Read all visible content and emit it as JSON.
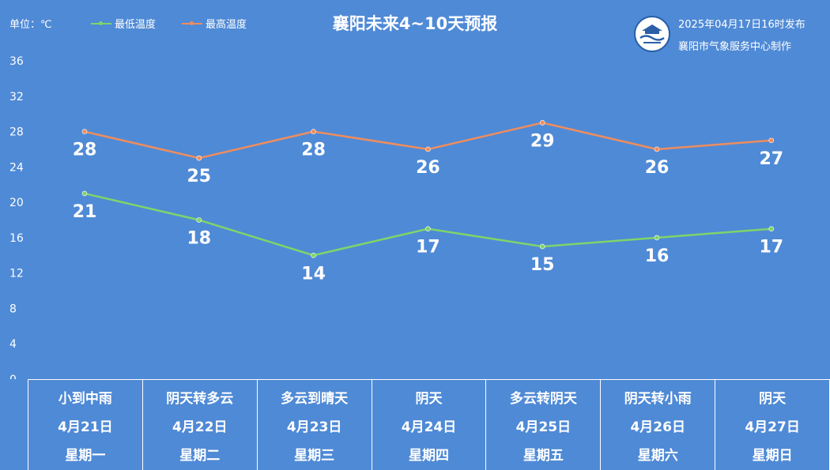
{
  "header": {
    "unit_label": "单位：℃",
    "title": "襄阳未来4~10天预报",
    "publish_time": "2025年04月17日16时发布",
    "publisher": "襄阳市气象服务中心制作"
  },
  "chart_data": {
    "type": "line",
    "title": "襄阳未来4~10天预报",
    "ylim": [
      0,
      36
    ],
    "yticks": [
      0,
      4,
      8,
      12,
      16,
      20,
      24,
      28,
      32,
      36
    ],
    "grid": false,
    "legend_position": "top-left",
    "categories": [
      "4月21日",
      "4月22日",
      "4月23日",
      "4月24日",
      "4月25日",
      "4月26日",
      "4月27日"
    ],
    "series": [
      {
        "name": "最低温度",
        "color": "#7fd46a",
        "values": [
          21,
          18,
          14,
          17,
          15,
          16,
          17
        ]
      },
      {
        "name": "最高温度",
        "color": "#ef8d5d",
        "values": [
          28,
          25,
          28,
          26,
          29,
          26,
          27
        ]
      }
    ]
  },
  "days": [
    {
      "weather": "小到中雨",
      "date": "4月21日",
      "weekday": "星期一"
    },
    {
      "weather": "阴天转多云",
      "date": "4月22日",
      "weekday": "星期二"
    },
    {
      "weather": "多云到晴天",
      "date": "4月23日",
      "weekday": "星期三"
    },
    {
      "weather": "阴天",
      "date": "4月24日",
      "weekday": "星期四"
    },
    {
      "weather": "多云转阴天",
      "date": "4月25日",
      "weekday": "星期五"
    },
    {
      "weather": "阴天转小雨",
      "date": "4月26日",
      "weekday": "星期六"
    },
    {
      "weather": "阴天",
      "date": "4月27日",
      "weekday": "星期日"
    }
  ]
}
